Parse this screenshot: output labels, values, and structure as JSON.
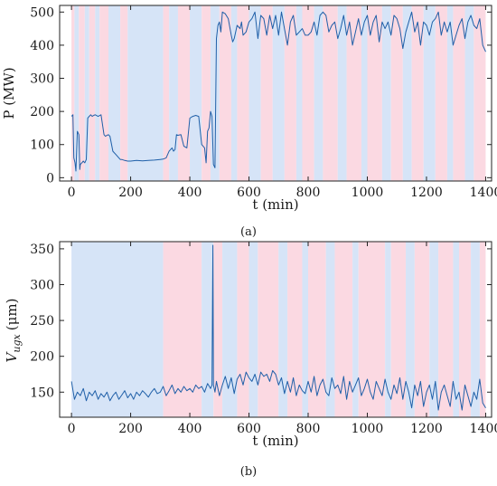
{
  "colors": {
    "band_a": "#d6e4f7",
    "band_b": "#fbd9e2",
    "line": "#1f5fa8"
  },
  "chart_data": [
    {
      "type": "line",
      "caption": "(a)",
      "xlabel": "t (min)",
      "ylabel": "P (MW)",
      "xlim": [
        -40,
        1420
      ],
      "ylim": [
        -10,
        520
      ],
      "xticks": [
        0,
        200,
        400,
        600,
        800,
        1000,
        1200,
        1400
      ],
      "yticks": [
        0,
        100,
        200,
        300,
        400,
        500
      ],
      "bands": [
        {
          "start": 0,
          "end": 10,
          "class": "b"
        },
        {
          "start": 10,
          "end": 25,
          "class": "a"
        },
        {
          "start": 25,
          "end": 45,
          "class": "b"
        },
        {
          "start": 45,
          "end": 60,
          "class": "a"
        },
        {
          "start": 60,
          "end": 80,
          "class": "b"
        },
        {
          "start": 80,
          "end": 95,
          "class": "a"
        },
        {
          "start": 95,
          "end": 125,
          "class": "b"
        },
        {
          "start": 125,
          "end": 165,
          "class": "a"
        },
        {
          "start": 165,
          "end": 190,
          "class": "b"
        },
        {
          "start": 190,
          "end": 310,
          "class": "a"
        },
        {
          "start": 310,
          "end": 330,
          "class": "b"
        },
        {
          "start": 330,
          "end": 360,
          "class": "a"
        },
        {
          "start": 360,
          "end": 400,
          "class": "b"
        },
        {
          "start": 400,
          "end": 440,
          "class": "a"
        },
        {
          "start": 440,
          "end": 470,
          "class": "b"
        },
        {
          "start": 470,
          "end": 500,
          "class": "a"
        },
        {
          "start": 500,
          "end": 540,
          "class": "b"
        },
        {
          "start": 540,
          "end": 560,
          "class": "a"
        },
        {
          "start": 560,
          "end": 600,
          "class": "b"
        },
        {
          "start": 600,
          "end": 640,
          "class": "a"
        },
        {
          "start": 640,
          "end": 680,
          "class": "b"
        },
        {
          "start": 680,
          "end": 720,
          "class": "a"
        },
        {
          "start": 720,
          "end": 760,
          "class": "b"
        },
        {
          "start": 760,
          "end": 780,
          "class": "a"
        },
        {
          "start": 780,
          "end": 820,
          "class": "b"
        },
        {
          "start": 820,
          "end": 850,
          "class": "a"
        },
        {
          "start": 850,
          "end": 900,
          "class": "b"
        },
        {
          "start": 900,
          "end": 930,
          "class": "a"
        },
        {
          "start": 930,
          "end": 980,
          "class": "b"
        },
        {
          "start": 980,
          "end": 1000,
          "class": "a"
        },
        {
          "start": 1000,
          "end": 1050,
          "class": "b"
        },
        {
          "start": 1050,
          "end": 1080,
          "class": "a"
        },
        {
          "start": 1080,
          "end": 1120,
          "class": "b"
        },
        {
          "start": 1120,
          "end": 1150,
          "class": "a"
        },
        {
          "start": 1150,
          "end": 1190,
          "class": "b"
        },
        {
          "start": 1190,
          "end": 1230,
          "class": "a"
        },
        {
          "start": 1230,
          "end": 1270,
          "class": "b"
        },
        {
          "start": 1270,
          "end": 1290,
          "class": "a"
        },
        {
          "start": 1290,
          "end": 1330,
          "class": "b"
        },
        {
          "start": 1330,
          "end": 1360,
          "class": "a"
        },
        {
          "start": 1360,
          "end": 1400,
          "class": "b"
        }
      ],
      "series": [
        {
          "x": [
            0,
            5,
            8,
            12,
            15,
            20,
            25,
            28,
            30,
            35,
            40,
            45,
            50,
            55,
            60,
            65,
            70,
            75,
            80,
            90,
            100,
            110,
            115,
            120,
            125,
            130,
            140,
            150,
            160,
            165,
            170,
            180,
            190,
            200,
            220,
            240,
            260,
            280,
            300,
            310,
            320,
            330,
            340,
            345,
            350,
            355,
            360,
            370,
            380,
            390,
            400,
            410,
            420,
            430,
            440,
            445,
            450,
            455,
            460,
            465,
            470,
            475,
            480,
            485,
            490,
            495,
            500,
            505,
            510,
            520,
            530,
            540,
            545,
            550,
            560,
            570,
            575,
            580,
            590,
            600,
            610,
            620,
            630,
            640,
            650,
            660,
            670,
            680,
            690,
            700,
            710,
            720,
            730,
            740,
            750,
            760,
            770,
            780,
            790,
            800,
            810,
            820,
            830,
            840,
            850,
            860,
            870,
            880,
            890,
            900,
            910,
            920,
            930,
            940,
            950,
            960,
            970,
            980,
            990,
            1000,
            1010,
            1020,
            1030,
            1040,
            1050,
            1060,
            1070,
            1080,
            1090,
            1100,
            1110,
            1120,
            1130,
            1140,
            1150,
            1160,
            1170,
            1180,
            1190,
            1200,
            1210,
            1220,
            1230,
            1240,
            1250,
            1260,
            1270,
            1280,
            1290,
            1300,
            1310,
            1320,
            1330,
            1340,
            1350,
            1360,
            1370,
            1380,
            1390,
            1400
          ],
          "values": [
            185,
            190,
            60,
            45,
            20,
            140,
            130,
            25,
            40,
            45,
            50,
            45,
            55,
            180,
            185,
            190,
            185,
            188,
            190,
            185,
            190,
            130,
            125,
            128,
            130,
            125,
            80,
            70,
            60,
            55,
            55,
            52,
            50,
            50,
            52,
            51,
            52,
            53,
            55,
            56,
            60,
            80,
            90,
            80,
            85,
            130,
            128,
            130,
            95,
            90,
            180,
            185,
            188,
            185,
            100,
            95,
            90,
            45,
            140,
            150,
            200,
            185,
            40,
            30,
            420,
            460,
            470,
            440,
            500,
            495,
            480,
            430,
            410,
            420,
            460,
            450,
            470,
            430,
            440,
            470,
            480,
            500,
            420,
            490,
            480,
            430,
            490,
            450,
            490,
            430,
            500,
            450,
            400,
            470,
            490,
            430,
            440,
            450,
            430,
            430,
            440,
            470,
            430,
            490,
            500,
            490,
            440,
            460,
            470,
            420,
            450,
            490,
            430,
            470,
            400,
            440,
            480,
            430,
            470,
            490,
            430,
            470,
            490,
            410,
            470,
            450,
            470,
            430,
            490,
            480,
            450,
            390,
            440,
            470,
            500,
            440,
            470,
            400,
            470,
            460,
            430,
            470,
            480,
            500,
            430,
            470,
            440,
            470,
            400,
            430,
            460,
            480,
            420,
            470,
            490,
            460,
            450,
            480,
            400,
            380
          ]
        }
      ]
    },
    {
      "type": "line",
      "caption": "(b)",
      "xlabel": "t (min)",
      "ylabel": "V",
      "ylabel_subscript": "ugx",
      "ylabel_unit": "(μm)",
      "xlim": [
        -40,
        1420
      ],
      "ylim": [
        115,
        360
      ],
      "xticks": [
        0,
        200,
        400,
        600,
        800,
        1000,
        1200,
        1400
      ],
      "yticks": [
        150,
        200,
        250,
        300,
        350
      ],
      "bands": [
        {
          "start": 0,
          "end": 310,
          "class": "a"
        },
        {
          "start": 310,
          "end": 440,
          "class": "b"
        },
        {
          "start": 440,
          "end": 480,
          "class": "a"
        },
        {
          "start": 480,
          "end": 510,
          "class": "b"
        },
        {
          "start": 510,
          "end": 560,
          "class": "a"
        },
        {
          "start": 560,
          "end": 600,
          "class": "b"
        },
        {
          "start": 600,
          "end": 630,
          "class": "a"
        },
        {
          "start": 630,
          "end": 700,
          "class": "b"
        },
        {
          "start": 700,
          "end": 730,
          "class": "a"
        },
        {
          "start": 730,
          "end": 780,
          "class": "b"
        },
        {
          "start": 780,
          "end": 800,
          "class": "a"
        },
        {
          "start": 800,
          "end": 860,
          "class": "b"
        },
        {
          "start": 860,
          "end": 890,
          "class": "a"
        },
        {
          "start": 890,
          "end": 950,
          "class": "b"
        },
        {
          "start": 950,
          "end": 970,
          "class": "a"
        },
        {
          "start": 970,
          "end": 1060,
          "class": "b"
        },
        {
          "start": 1060,
          "end": 1080,
          "class": "a"
        },
        {
          "start": 1080,
          "end": 1130,
          "class": "b"
        },
        {
          "start": 1130,
          "end": 1160,
          "class": "a"
        },
        {
          "start": 1160,
          "end": 1210,
          "class": "b"
        },
        {
          "start": 1210,
          "end": 1240,
          "class": "a"
        },
        {
          "start": 1240,
          "end": 1290,
          "class": "b"
        },
        {
          "start": 1290,
          "end": 1310,
          "class": "a"
        },
        {
          "start": 1310,
          "end": 1350,
          "class": "b"
        },
        {
          "start": 1350,
          "end": 1380,
          "class": "a"
        },
        {
          "start": 1380,
          "end": 1400,
          "class": "b"
        }
      ],
      "series": [
        {
          "x": [
            0,
            10,
            20,
            30,
            40,
            50,
            60,
            70,
            80,
            90,
            100,
            110,
            120,
            130,
            140,
            150,
            160,
            170,
            180,
            190,
            200,
            210,
            220,
            230,
            240,
            250,
            260,
            270,
            280,
            290,
            300,
            310,
            320,
            330,
            340,
            350,
            360,
            370,
            380,
            390,
            400,
            410,
            420,
            430,
            440,
            450,
            460,
            470,
            475,
            478,
            480,
            485,
            490,
            500,
            510,
            520,
            530,
            540,
            550,
            560,
            570,
            580,
            590,
            600,
            610,
            620,
            630,
            640,
            650,
            660,
            670,
            680,
            690,
            700,
            710,
            720,
            730,
            740,
            750,
            760,
            770,
            780,
            790,
            800,
            810,
            820,
            830,
            840,
            850,
            860,
            870,
            880,
            890,
            900,
            910,
            920,
            930,
            940,
            950,
            960,
            970,
            980,
            990,
            1000,
            1010,
            1020,
            1030,
            1040,
            1050,
            1060,
            1070,
            1080,
            1090,
            1100,
            1110,
            1120,
            1130,
            1140,
            1150,
            1160,
            1170,
            1180,
            1190,
            1200,
            1210,
            1220,
            1230,
            1240,
            1250,
            1260,
            1270,
            1280,
            1290,
            1300,
            1310,
            1320,
            1330,
            1340,
            1350,
            1360,
            1370,
            1380,
            1390,
            1400
          ],
          "values": [
            165,
            140,
            150,
            145,
            155,
            138,
            150,
            145,
            152,
            140,
            148,
            143,
            150,
            138,
            145,
            150,
            140,
            146,
            152,
            142,
            148,
            140,
            150,
            145,
            152,
            148,
            143,
            150,
            155,
            148,
            150,
            158,
            145,
            152,
            160,
            148,
            155,
            150,
            158,
            152,
            155,
            150,
            160,
            155,
            158,
            150,
            162,
            155,
            160,
            355,
            160,
            150,
            165,
            145,
            160,
            172,
            155,
            170,
            148,
            168,
            175,
            160,
            178,
            170,
            165,
            175,
            160,
            178,
            172,
            175,
            165,
            180,
            175,
            160,
            170,
            148,
            165,
            150,
            170,
            145,
            160,
            152,
            148,
            165,
            150,
            172,
            145,
            160,
            168,
            150,
            145,
            170,
            155,
            160,
            148,
            172,
            140,
            165,
            150,
            160,
            170,
            145,
            155,
            168,
            150,
            140,
            165,
            155,
            145,
            168,
            150,
            140,
            160,
            148,
            170,
            140,
            165,
            150,
            128,
            160,
            145,
            165,
            130,
            150,
            160,
            140,
            165,
            125,
            150,
            160,
            145,
            130,
            165,
            140,
            150,
            125,
            160,
            145,
            130,
            150,
            140,
            168,
            135,
            128
          ]
        }
      ]
    }
  ]
}
